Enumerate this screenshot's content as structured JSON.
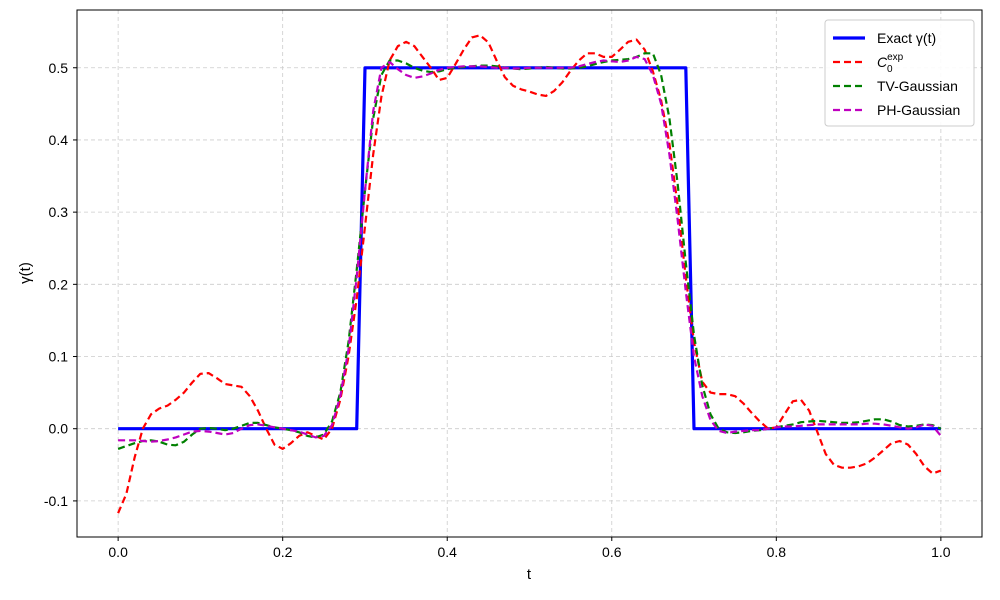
{
  "chart_data": {
    "type": "line",
    "xlabel": "t",
    "ylabel": "γ(t)",
    "xlim": [
      -0.05,
      1.05
    ],
    "ylim": [
      -0.15,
      0.58
    ],
    "xticks": [
      0.0,
      0.2,
      0.4,
      0.6,
      0.8,
      1.0
    ],
    "xtick_labels": [
      "0.0",
      "0.2",
      "0.4",
      "0.6",
      "0.8",
      "1.0"
    ],
    "yticks": [
      -0.1,
      0.0,
      0.1,
      0.2,
      0.3,
      0.4,
      0.5
    ],
    "ytick_labels": [
      "-0.1",
      "0.0",
      "0.1",
      "0.2",
      "0.3",
      "0.4",
      "0.5"
    ],
    "grid": true,
    "legend_position": "top-right",
    "series": [
      {
        "name": "Exact γ(t)",
        "color": "#0000ff",
        "style": "solid",
        "x": [
          0.0,
          0.29,
          0.3,
          0.69,
          0.7,
          1.0
        ],
        "y": [
          0.0,
          0.0,
          0.5,
          0.5,
          0.0,
          0.0
        ]
      },
      {
        "name": "C0exp",
        "label_main": "C",
        "label_sub": "0",
        "label_sup": "exp",
        "color": "#ff0000",
        "style": "dashed",
        "x": [
          0.0,
          0.01,
          0.02,
          0.03,
          0.04,
          0.05,
          0.06,
          0.07,
          0.08,
          0.09,
          0.1,
          0.11,
          0.12,
          0.13,
          0.14,
          0.15,
          0.16,
          0.17,
          0.18,
          0.19,
          0.2,
          0.21,
          0.22,
          0.23,
          0.24,
          0.25,
          0.26,
          0.27,
          0.28,
          0.29,
          0.3,
          0.31,
          0.32,
          0.33,
          0.34,
          0.35,
          0.36,
          0.37,
          0.38,
          0.39,
          0.4,
          0.41,
          0.42,
          0.43,
          0.44,
          0.45,
          0.46,
          0.47,
          0.48,
          0.49,
          0.5,
          0.51,
          0.52,
          0.53,
          0.54,
          0.55,
          0.56,
          0.57,
          0.58,
          0.59,
          0.6,
          0.61,
          0.62,
          0.63,
          0.64,
          0.65,
          0.66,
          0.67,
          0.68,
          0.69,
          0.7,
          0.71,
          0.72,
          0.73,
          0.74,
          0.75,
          0.76,
          0.77,
          0.78,
          0.79,
          0.8,
          0.81,
          0.82,
          0.83,
          0.84,
          0.85,
          0.86,
          0.87,
          0.88,
          0.89,
          0.9,
          0.91,
          0.92,
          0.93,
          0.94,
          0.95,
          0.96,
          0.97,
          0.98,
          0.99,
          1.0
        ],
        "y": [
          -0.117,
          -0.09,
          -0.04,
          0.0,
          0.02,
          0.028,
          0.032,
          0.04,
          0.05,
          0.064,
          0.076,
          0.077,
          0.07,
          0.062,
          0.06,
          0.058,
          0.045,
          0.025,
          0.0,
          -0.022,
          -0.028,
          -0.02,
          -0.01,
          -0.005,
          -0.01,
          -0.015,
          0.0,
          0.04,
          0.1,
          0.18,
          0.28,
          0.38,
          0.46,
          0.51,
          0.53,
          0.536,
          0.53,
          0.515,
          0.5,
          0.483,
          0.486,
          0.505,
          0.525,
          0.542,
          0.545,
          0.535,
          0.51,
          0.487,
          0.475,
          0.47,
          0.467,
          0.463,
          0.461,
          0.468,
          0.48,
          0.496,
          0.51,
          0.52,
          0.52,
          0.515,
          0.515,
          0.525,
          0.536,
          0.539,
          0.525,
          0.495,
          0.455,
          0.395,
          0.31,
          0.21,
          0.12,
          0.065,
          0.05,
          0.048,
          0.048,
          0.045,
          0.035,
          0.022,
          0.01,
          0.0,
          0.002,
          0.02,
          0.038,
          0.04,
          0.025,
          -0.005,
          -0.035,
          -0.05,
          -0.054,
          -0.054,
          -0.052,
          -0.048,
          -0.04,
          -0.03,
          -0.02,
          -0.017,
          -0.022,
          -0.035,
          -0.052,
          -0.062,
          -0.058
        ]
      },
      {
        "name": "TV-Gaussian",
        "color": "#008000",
        "style": "dashed",
        "x": [
          0.0,
          0.01,
          0.02,
          0.03,
          0.04,
          0.05,
          0.06,
          0.07,
          0.08,
          0.09,
          0.1,
          0.11,
          0.12,
          0.13,
          0.14,
          0.15,
          0.16,
          0.17,
          0.18,
          0.19,
          0.2,
          0.21,
          0.22,
          0.23,
          0.24,
          0.25,
          0.26,
          0.27,
          0.28,
          0.29,
          0.3,
          0.31,
          0.32,
          0.33,
          0.34,
          0.35,
          0.36,
          0.37,
          0.38,
          0.39,
          0.4,
          0.41,
          0.42,
          0.43,
          0.44,
          0.45,
          0.46,
          0.47,
          0.48,
          0.49,
          0.5,
          0.51,
          0.52,
          0.53,
          0.54,
          0.55,
          0.56,
          0.57,
          0.58,
          0.59,
          0.6,
          0.61,
          0.62,
          0.63,
          0.64,
          0.65,
          0.66,
          0.67,
          0.68,
          0.69,
          0.7,
          0.71,
          0.72,
          0.73,
          0.74,
          0.75,
          0.76,
          0.77,
          0.78,
          0.79,
          0.8,
          0.81,
          0.82,
          0.83,
          0.84,
          0.85,
          0.86,
          0.87,
          0.88,
          0.89,
          0.9,
          0.91,
          0.92,
          0.93,
          0.94,
          0.95,
          0.96,
          0.97,
          0.98,
          0.99,
          1.0
        ],
        "y": [
          -0.028,
          -0.024,
          -0.02,
          -0.017,
          -0.016,
          -0.018,
          -0.022,
          -0.023,
          -0.018,
          -0.008,
          0.0,
          0.001,
          0.0,
          -0.002,
          0.0,
          0.004,
          0.008,
          0.008,
          0.005,
          0.002,
          0.0,
          -0.002,
          -0.005,
          -0.01,
          -0.012,
          -0.008,
          0.01,
          0.05,
          0.12,
          0.22,
          0.33,
          0.43,
          0.49,
          0.51,
          0.51,
          0.506,
          0.5,
          0.496,
          0.494,
          0.495,
          0.498,
          0.5,
          0.501,
          0.502,
          0.503,
          0.503,
          0.502,
          0.5,
          0.499,
          0.498,
          0.499,
          0.5,
          0.501,
          0.5,
          0.499,
          0.499,
          0.5,
          0.502,
          0.505,
          0.508,
          0.51,
          0.511,
          0.512,
          0.515,
          0.52,
          0.52,
          0.49,
          0.43,
          0.34,
          0.23,
          0.13,
          0.06,
          0.02,
          0.0,
          -0.005,
          -0.006,
          -0.005,
          -0.003,
          -0.002,
          0.0,
          0.002,
          0.004,
          0.006,
          0.009,
          0.01,
          0.011,
          0.01,
          0.009,
          0.008,
          0.008,
          0.009,
          0.011,
          0.013,
          0.013,
          0.01,
          0.005,
          0.003,
          0.004,
          0.006,
          0.005,
          0.0
        ]
      },
      {
        "name": "PH-Gaussian",
        "color": "#bf00bf",
        "style": "dashed",
        "x": [
          0.0,
          0.01,
          0.02,
          0.03,
          0.04,
          0.05,
          0.06,
          0.07,
          0.08,
          0.09,
          0.1,
          0.11,
          0.12,
          0.13,
          0.14,
          0.15,
          0.16,
          0.17,
          0.18,
          0.19,
          0.2,
          0.21,
          0.22,
          0.23,
          0.24,
          0.25,
          0.26,
          0.27,
          0.28,
          0.29,
          0.3,
          0.31,
          0.32,
          0.33,
          0.34,
          0.35,
          0.36,
          0.37,
          0.38,
          0.39,
          0.4,
          0.41,
          0.42,
          0.43,
          0.44,
          0.45,
          0.46,
          0.47,
          0.48,
          0.49,
          0.5,
          0.51,
          0.52,
          0.53,
          0.54,
          0.55,
          0.56,
          0.57,
          0.58,
          0.59,
          0.6,
          0.61,
          0.62,
          0.63,
          0.64,
          0.65,
          0.66,
          0.67,
          0.68,
          0.69,
          0.7,
          0.71,
          0.72,
          0.73,
          0.74,
          0.75,
          0.76,
          0.77,
          0.78,
          0.79,
          0.8,
          0.81,
          0.82,
          0.83,
          0.84,
          0.85,
          0.86,
          0.87,
          0.88,
          0.89,
          0.9,
          0.91,
          0.92,
          0.93,
          0.94,
          0.95,
          0.96,
          0.97,
          0.98,
          0.99,
          1.0
        ],
        "y": [
          -0.016,
          -0.016,
          -0.016,
          -0.017,
          -0.018,
          -0.017,
          -0.015,
          -0.012,
          -0.008,
          -0.004,
          -0.003,
          -0.004,
          -0.006,
          -0.008,
          -0.006,
          0.0,
          0.005,
          0.006,
          0.004,
          0.002,
          0.0,
          -0.002,
          -0.004,
          -0.008,
          -0.012,
          -0.01,
          0.005,
          0.045,
          0.11,
          0.21,
          0.33,
          0.44,
          0.5,
          0.508,
          0.498,
          0.49,
          0.486,
          0.488,
          0.492,
          0.497,
          0.5,
          0.501,
          0.502,
          0.502,
          0.502,
          0.501,
          0.5,
          0.5,
          0.499,
          0.499,
          0.5,
          0.5,
          0.5,
          0.5,
          0.5,
          0.5,
          0.502,
          0.505,
          0.508,
          0.51,
          0.509,
          0.508,
          0.51,
          0.515,
          0.512,
          0.49,
          0.45,
          0.38,
          0.29,
          0.19,
          0.1,
          0.045,
          0.012,
          -0.003,
          -0.006,
          -0.004,
          -0.003,
          -0.002,
          -0.002,
          0.0,
          0.002,
          0.003,
          0.003,
          0.004,
          0.005,
          0.006,
          0.006,
          0.006,
          0.006,
          0.006,
          0.006,
          0.007,
          0.007,
          0.006,
          0.004,
          0.002,
          0.0,
          0.002,
          0.006,
          0.004,
          -0.01
        ]
      }
    ]
  }
}
